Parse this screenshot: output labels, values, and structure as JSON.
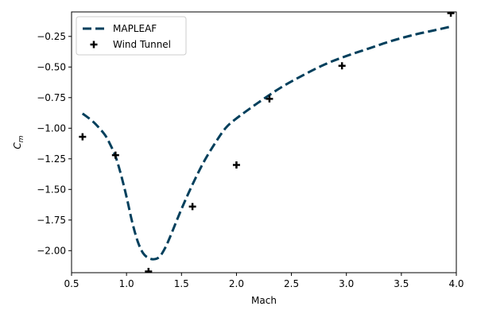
{
  "chart_data": {
    "type": "line",
    "title": "",
    "xlabel": "Mach",
    "ylabel": "C_m",
    "xlim": [
      0.5,
      4.0
    ],
    "ylim": [
      -2.18,
      -0.05
    ],
    "grid": false,
    "legend_placement": "top-left",
    "xticks": [
      0.5,
      1.0,
      1.5,
      2.0,
      2.5,
      3.0,
      3.5,
      4.0
    ],
    "xtick_labels": [
      "0.5",
      "1.0",
      "1.5",
      "2.0",
      "2.5",
      "3.0",
      "3.5",
      "4.0"
    ],
    "yticks": [
      -2.0,
      -1.75,
      -1.5,
      -1.25,
      -1.0,
      -0.75,
      -0.5,
      -0.25
    ],
    "ytick_labels": [
      "−2.00",
      "−1.75",
      "−1.50",
      "−1.25",
      "−1.00",
      "−0.75",
      "−0.50",
      "−0.25"
    ],
    "series": [
      {
        "name": "MAPLEAF",
        "style": "dashed-line",
        "color": "#003f5c",
        "x": [
          0.6,
          0.7,
          0.8,
          0.85,
          0.9,
          0.95,
          1.0,
          1.05,
          1.1,
          1.15,
          1.2,
          1.25,
          1.3,
          1.35,
          1.4,
          1.5,
          1.6,
          1.7,
          1.8,
          1.9,
          2.0,
          2.2,
          2.4,
          2.6,
          2.8,
          3.0,
          3.2,
          3.4,
          3.6,
          3.8,
          3.95
        ],
        "y": [
          -0.88,
          -0.95,
          -1.05,
          -1.13,
          -1.23,
          -1.38,
          -1.56,
          -1.76,
          -1.92,
          -2.02,
          -2.06,
          -2.07,
          -2.05,
          -1.98,
          -1.88,
          -1.66,
          -1.46,
          -1.28,
          -1.13,
          -1.0,
          -0.92,
          -0.79,
          -0.67,
          -0.57,
          -0.48,
          -0.41,
          -0.35,
          -0.29,
          -0.24,
          -0.2,
          -0.17
        ]
      },
      {
        "name": "Wind Tunnel",
        "style": "plus-marker",
        "color": "#000000",
        "x": [
          0.6,
          0.9,
          1.2,
          1.6,
          2.0,
          2.3,
          2.96,
          3.95
        ],
        "y": [
          -1.07,
          -1.22,
          -2.17,
          -1.64,
          -1.3,
          -0.76,
          -0.49,
          -0.06
        ]
      }
    ]
  }
}
